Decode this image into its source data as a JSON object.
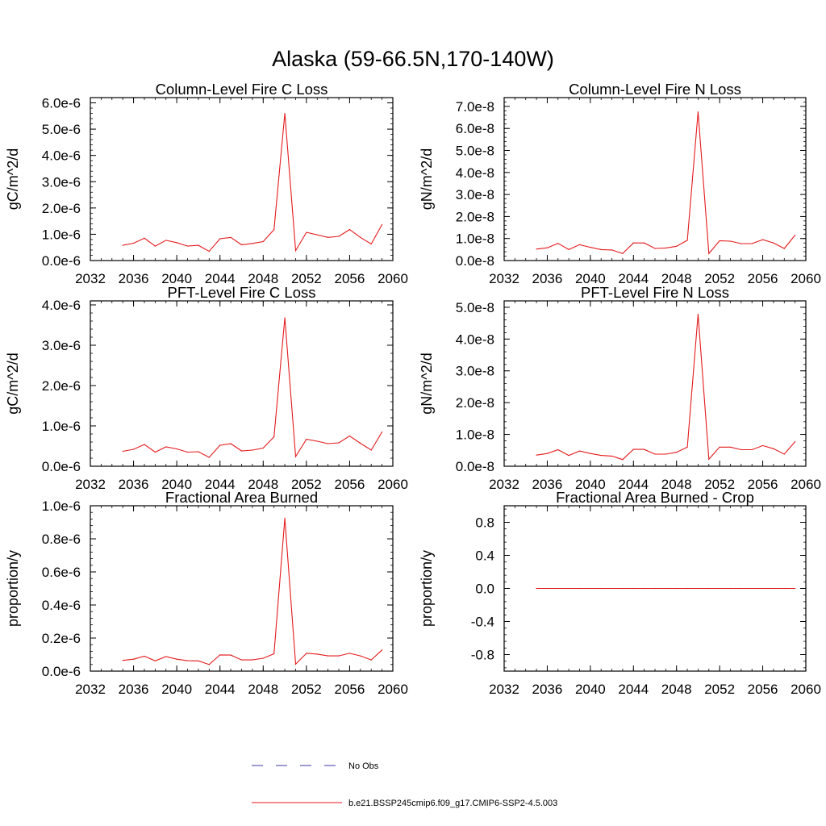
{
  "figure": {
    "title": "Alaska (59-66.5N,170-140W)"
  },
  "legend": {
    "items": [
      {
        "label": "No Obs",
        "color": "#3a3aa0",
        "style": "dashed"
      },
      {
        "label": "b.e21.BSSP245cmip6.f09_g17.CMIP6-SSP2-4.5.003",
        "color": "#e41a1c",
        "style": "solid"
      }
    ]
  },
  "chart_data": [
    {
      "type": "line",
      "title": "Column-Level Fire C Loss",
      "xlabel": "",
      "ylabel": "gC/m^2/d",
      "xlim": [
        2032,
        2060
      ],
      "ylim": [
        0,
        6.2e-06
      ],
      "xticks": [
        {
          "v": 2032,
          "label": "2032"
        },
        {
          "v": 2036,
          "label": "2036"
        },
        {
          "v": 2040,
          "label": "2040"
        },
        {
          "v": 2044,
          "label": "2044"
        },
        {
          "v": 2048,
          "label": "2048"
        },
        {
          "v": 2052,
          "label": "2052"
        },
        {
          "v": 2056,
          "label": "2056"
        },
        {
          "v": 2060,
          "label": "2060"
        }
      ],
      "yticks": [
        {
          "v": 0,
          "label": "0.0e-6"
        },
        {
          "v": 1e-06,
          "label": "1.0e-6"
        },
        {
          "v": 2e-06,
          "label": "2.0e-6"
        },
        {
          "v": 3e-06,
          "label": "3.0e-6"
        },
        {
          "v": 4e-06,
          "label": "4.0e-6"
        },
        {
          "v": 5e-06,
          "label": "5.0e-6"
        },
        {
          "v": 6e-06,
          "label": "6.0e-6"
        }
      ],
      "series": [
        {
          "color": "#e41a1c",
          "x": [
            2035,
            2036,
            2037,
            2038,
            2039,
            2040,
            2041,
            2042,
            2043,
            2044,
            2045,
            2046,
            2047,
            2048,
            2049,
            2050,
            2051,
            2052,
            2053,
            2054,
            2055,
            2056,
            2057,
            2058,
            2059
          ],
          "values": [
            5.8e-07,
            6.6e-07,
            8.5e-07,
            5.5e-07,
            7.7e-07,
            6.8e-07,
            5.5e-07,
            5.8e-07,
            3.5e-07,
            8.3e-07,
            8.8e-07,
            6e-07,
            6.5e-07,
            7.2e-07,
            1.18e-06,
            5.6e-06,
            3.8e-07,
            1.07e-06,
            9.8e-07,
            8.8e-07,
            9.2e-07,
            1.18e-06,
            8.8e-07,
            6.3e-07,
            1.37e-06
          ]
        }
      ]
    },
    {
      "type": "line",
      "title": "Column-Level Fire N Loss",
      "xlabel": "",
      "ylabel": "gN/m^2/d",
      "xlim": [
        2032,
        2060
      ],
      "ylim": [
        0,
        7.4e-08
      ],
      "xticks": [
        {
          "v": 2032,
          "label": "2032"
        },
        {
          "v": 2036,
          "label": "2036"
        },
        {
          "v": 2040,
          "label": "2040"
        },
        {
          "v": 2044,
          "label": "2044"
        },
        {
          "v": 2048,
          "label": "2048"
        },
        {
          "v": 2052,
          "label": "2052"
        },
        {
          "v": 2056,
          "label": "2056"
        },
        {
          "v": 2060,
          "label": "2060"
        }
      ],
      "yticks": [
        {
          "v": 0,
          "label": "0.0e-8"
        },
        {
          "v": 1e-08,
          "label": "1.0e-8"
        },
        {
          "v": 2e-08,
          "label": "2.0e-8"
        },
        {
          "v": 3e-08,
          "label": "3.0e-8"
        },
        {
          "v": 4e-08,
          "label": "4.0e-8"
        },
        {
          "v": 5e-08,
          "label": "5.0e-8"
        },
        {
          "v": 6e-08,
          "label": "6.0e-8"
        },
        {
          "v": 7e-08,
          "label": "7.0e-8"
        }
      ],
      "series": [
        {
          "color": "#e41a1c",
          "x": [
            2035,
            2036,
            2037,
            2038,
            2039,
            2040,
            2041,
            2042,
            2043,
            2044,
            2045,
            2046,
            2047,
            2048,
            2049,
            2050,
            2051,
            2052,
            2053,
            2054,
            2055,
            2056,
            2057,
            2058,
            2059
          ],
          "values": [
            5.2e-09,
            5.8e-09,
            7.8e-09,
            5e-09,
            7.2e-09,
            6e-09,
            5e-09,
            4.8e-09,
            3.2e-09,
            8e-09,
            8e-09,
            5.5e-09,
            5.7e-09,
            6.5e-09,
            9.2e-09,
            6.75e-08,
            3.2e-09,
            9e-09,
            8.8e-09,
            7.7e-09,
            7.7e-09,
            9.5e-09,
            8e-09,
            5.5e-09,
            1.15e-08
          ]
        }
      ]
    },
    {
      "type": "line",
      "title": "PFT-Level Fire C Loss",
      "xlabel": "",
      "ylabel": "gC/m^2/d",
      "xlim": [
        2032,
        2060
      ],
      "ylim": [
        0,
        4.1e-06
      ],
      "xticks": [
        {
          "v": 2032,
          "label": "2032"
        },
        {
          "v": 2036,
          "label": "2036"
        },
        {
          "v": 2040,
          "label": "2040"
        },
        {
          "v": 2044,
          "label": "2044"
        },
        {
          "v": 2048,
          "label": "2048"
        },
        {
          "v": 2052,
          "label": "2052"
        },
        {
          "v": 2056,
          "label": "2056"
        },
        {
          "v": 2060,
          "label": "2060"
        }
      ],
      "yticks": [
        {
          "v": 0,
          "label": "0.0e-6"
        },
        {
          "v": 1e-06,
          "label": "1.0e-6"
        },
        {
          "v": 2e-06,
          "label": "2.0e-6"
        },
        {
          "v": 3e-06,
          "label": "3.0e-6"
        },
        {
          "v": 4e-06,
          "label": "4.0e-6"
        }
      ],
      "series": [
        {
          "color": "#e41a1c",
          "x": [
            2035,
            2036,
            2037,
            2038,
            2039,
            2040,
            2041,
            2042,
            2043,
            2044,
            2045,
            2046,
            2047,
            2048,
            2049,
            2050,
            2051,
            2052,
            2053,
            2054,
            2055,
            2056,
            2057,
            2058,
            2059
          ],
          "values": [
            3.7e-07,
            4.2e-07,
            5.4e-07,
            3.5e-07,
            4.8e-07,
            4.3e-07,
            3.5e-07,
            3.6e-07,
            2.2e-07,
            5.2e-07,
            5.6e-07,
            3.8e-07,
            4e-07,
            4.5e-07,
            7.3e-07,
            3.68e-06,
            2.4e-07,
            6.7e-07,
            6.2e-07,
            5.6e-07,
            5.8e-07,
            7.5e-07,
            5.7e-07,
            4e-07,
            8.5e-07
          ]
        }
      ]
    },
    {
      "type": "line",
      "title": "PFT-Level Fire N Loss",
      "xlabel": "",
      "ylabel": "gN/m^2/d",
      "xlim": [
        2032,
        2060
      ],
      "ylim": [
        0,
        5.2e-08
      ],
      "xticks": [
        {
          "v": 2032,
          "label": "2032"
        },
        {
          "v": 2036,
          "label": "2036"
        },
        {
          "v": 2040,
          "label": "2040"
        },
        {
          "v": 2044,
          "label": "2044"
        },
        {
          "v": 2048,
          "label": "2048"
        },
        {
          "v": 2052,
          "label": "2052"
        },
        {
          "v": 2056,
          "label": "2056"
        },
        {
          "v": 2060,
          "label": "2060"
        }
      ],
      "yticks": [
        {
          "v": 0,
          "label": "0.0e-8"
        },
        {
          "v": 1e-08,
          "label": "1.0e-8"
        },
        {
          "v": 2e-08,
          "label": "2.0e-8"
        },
        {
          "v": 3e-08,
          "label": "3.0e-8"
        },
        {
          "v": 4e-08,
          "label": "4.0e-8"
        },
        {
          "v": 5e-08,
          "label": "5.0e-8"
        }
      ],
      "series": [
        {
          "color": "#e41a1c",
          "x": [
            2035,
            2036,
            2037,
            2038,
            2039,
            2040,
            2041,
            2042,
            2043,
            2044,
            2045,
            2046,
            2047,
            2048,
            2049,
            2050,
            2051,
            2052,
            2053,
            2054,
            2055,
            2056,
            2057,
            2058,
            2059
          ],
          "values": [
            3.5e-09,
            4e-09,
            5.2e-09,
            3.4e-09,
            4.8e-09,
            4e-09,
            3.4e-09,
            3.2e-09,
            2.1e-09,
            5.3e-09,
            5.3e-09,
            3.8e-09,
            3.8e-09,
            4.4e-09,
            6e-09,
            4.78e-08,
            2.2e-09,
            6e-09,
            6e-09,
            5.2e-09,
            5.2e-09,
            6.5e-09,
            5.5e-09,
            3.8e-09,
            7.7e-09
          ]
        }
      ]
    },
    {
      "type": "line",
      "title": "Fractional Area Burned",
      "xlabel": "",
      "ylabel": "proportion/y",
      "xlim": [
        2032,
        2060
      ],
      "ylim": [
        0,
        1e-06
      ],
      "xticks": [
        {
          "v": 2032,
          "label": "2032"
        },
        {
          "v": 2036,
          "label": "2036"
        },
        {
          "v": 2040,
          "label": "2040"
        },
        {
          "v": 2044,
          "label": "2044"
        },
        {
          "v": 2048,
          "label": "2048"
        },
        {
          "v": 2052,
          "label": "2052"
        },
        {
          "v": 2056,
          "label": "2056"
        },
        {
          "v": 2060,
          "label": "2060"
        }
      ],
      "yticks": [
        {
          "v": 0,
          "label": "0.0e-6"
        },
        {
          "v": 2e-07,
          "label": "0.2e-6"
        },
        {
          "v": 4e-07,
          "label": "0.4e-6"
        },
        {
          "v": 6e-07,
          "label": "0.6e-6"
        },
        {
          "v": 8e-07,
          "label": "0.8e-6"
        },
        {
          "v": 1e-06,
          "label": "1.0e-6"
        }
      ],
      "series": [
        {
          "color": "#e41a1c",
          "x": [
            2035,
            2036,
            2037,
            2038,
            2039,
            2040,
            2041,
            2042,
            2043,
            2044,
            2045,
            2046,
            2047,
            2048,
            2049,
            2050,
            2051,
            2052,
            2053,
            2054,
            2055,
            2056,
            2057,
            2058,
            2059
          ],
          "values": [
            6.5e-08,
            7.2e-08,
            9e-08,
            6.2e-08,
            8.8e-08,
            7.2e-08,
            6.3e-08,
            6.2e-08,
            4e-08,
            9.8e-08,
            9.7e-08,
            6.8e-08,
            6.8e-08,
            7.8e-08,
            1.05e-07,
            9.25e-07,
            4.2e-08,
            1.08e-07,
            1.03e-07,
            9.2e-08,
            9.2e-08,
            1.08e-07,
            9.2e-08,
            6.8e-08,
            1.28e-07
          ]
        }
      ]
    },
    {
      "type": "line",
      "title": "Fractional Area Burned - Crop",
      "xlabel": "",
      "ylabel": "proportion/y",
      "xlim": [
        2032,
        2060
      ],
      "ylim": [
        -1.0,
        1.0
      ],
      "xticks": [
        {
          "v": 2032,
          "label": "2032"
        },
        {
          "v": 2036,
          "label": "2036"
        },
        {
          "v": 2040,
          "label": "2040"
        },
        {
          "v": 2044,
          "label": "2044"
        },
        {
          "v": 2048,
          "label": "2048"
        },
        {
          "v": 2052,
          "label": "2052"
        },
        {
          "v": 2056,
          "label": "2056"
        },
        {
          "v": 2060,
          "label": "2060"
        }
      ],
      "yticks": [
        {
          "v": -0.8,
          "label": "-0.8"
        },
        {
          "v": -0.4,
          "label": "-0.4"
        },
        {
          "v": 0,
          "label": "0.0"
        },
        {
          "v": 0.4,
          "label": "0.4"
        },
        {
          "v": 0.8,
          "label": "0.8"
        }
      ],
      "series": [
        {
          "color": "#e41a1c",
          "x": [
            2035,
            2036,
            2037,
            2038,
            2039,
            2040,
            2041,
            2042,
            2043,
            2044,
            2045,
            2046,
            2047,
            2048,
            2049,
            2050,
            2051,
            2052,
            2053,
            2054,
            2055,
            2056,
            2057,
            2058,
            2059
          ],
          "values": [
            0,
            0,
            0,
            0,
            0,
            0,
            0,
            0,
            0,
            0,
            0,
            0,
            0,
            0,
            0,
            0,
            0,
            0,
            0,
            0,
            0,
            0,
            0,
            0,
            0
          ]
        }
      ]
    }
  ]
}
